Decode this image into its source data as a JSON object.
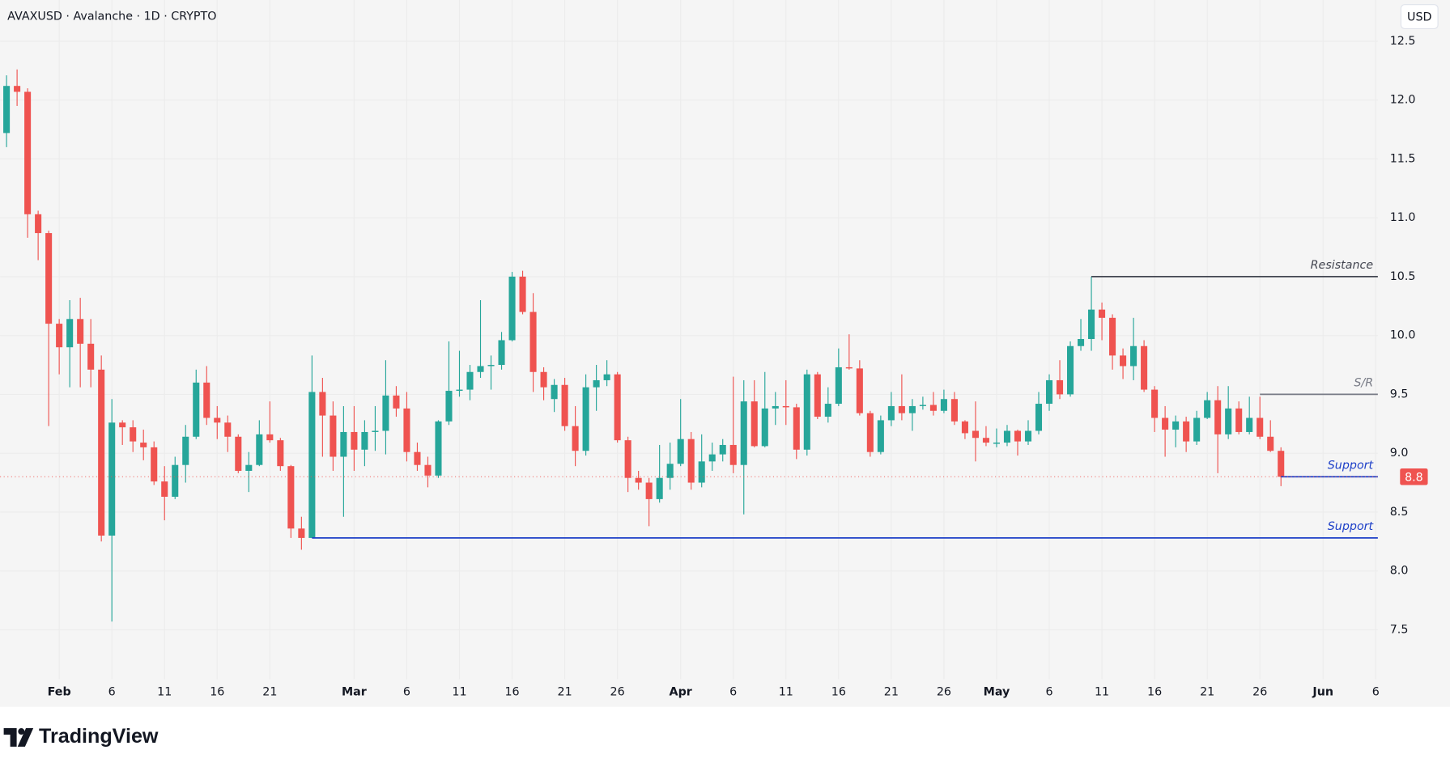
{
  "chart_data": {
    "type": "candlestick",
    "title": "AVAXUSD · Avalanche · 1D · CRYPTO",
    "currency": "USD",
    "logo_text": "TradingView",
    "up_color": "#26a69a",
    "down_color": "#ef5350",
    "x": [
      "Jan 27",
      "Jan 28",
      "Jan 29",
      "Jan 30",
      "Jan 31",
      "Feb 1",
      "Feb 2",
      "Feb 3",
      "Feb 4",
      "Feb 5",
      "Feb 6",
      "Feb 7",
      "Feb 8",
      "Feb 9",
      "Feb 10",
      "Feb 11",
      "Feb 12",
      "Feb 13",
      "Feb 14",
      "Feb 15",
      "Feb 16",
      "Feb 17",
      "Feb 18",
      "Feb 19",
      "Feb 20",
      "Feb 21",
      "Feb 22",
      "Feb 23",
      "Feb 24",
      "Feb 25",
      "Feb 26",
      "Feb 27",
      "Feb 28",
      "Mar 1",
      "Mar 2",
      "Mar 3",
      "Mar 4",
      "Mar 5",
      "Mar 6",
      "Mar 7",
      "Mar 8",
      "Mar 9",
      "Mar 10",
      "Mar 11",
      "Mar 12",
      "Mar 13",
      "Mar 14",
      "Mar 15",
      "Mar 16",
      "Mar 17",
      "Mar 18",
      "Mar 19",
      "Mar 20",
      "Mar 21",
      "Mar 22",
      "Mar 23",
      "Mar 24",
      "Mar 25",
      "Mar 26",
      "Mar 27",
      "Mar 28",
      "Mar 29",
      "Mar 30",
      "Mar 31",
      "Apr 1",
      "Apr 2",
      "Apr 3",
      "Apr 4",
      "Apr 5",
      "Apr 6",
      "Apr 7",
      "Apr 8",
      "Apr 9",
      "Apr 10",
      "Apr 11",
      "Apr 12",
      "Apr 13",
      "Apr 14",
      "Apr 15",
      "Apr 16",
      "Apr 17",
      "Apr 18",
      "Apr 19",
      "Apr 20",
      "Apr 21",
      "Apr 22",
      "Apr 23",
      "Apr 24",
      "Apr 25",
      "Apr 26",
      "Apr 27",
      "Apr 28",
      "Apr 29",
      "Apr 30",
      "May 1",
      "May 2",
      "May 3",
      "May 4",
      "May 5",
      "May 6",
      "May 7",
      "May 8",
      "May 9",
      "May 10",
      "May 11",
      "May 12",
      "May 13",
      "May 14",
      "May 15",
      "May 16",
      "May 17",
      "May 18",
      "May 19",
      "May 20",
      "May 21",
      "May 22",
      "May 23",
      "May 24",
      "May 25",
      "May 26",
      "May 27",
      "May 28"
    ],
    "open": [
      11.72,
      12.12,
      12.07,
      11.03,
      10.87,
      10.1,
      9.9,
      10.14,
      9.93,
      9.71,
      8.3,
      9.26,
      9.22,
      9.09,
      9.05,
      8.76,
      8.63,
      8.9,
      9.14,
      9.6,
      9.3,
      9.26,
      9.14,
      8.85,
      8.9,
      9.16,
      9.11,
      8.89,
      8.36,
      8.28,
      9.52,
      9.32,
      8.97,
      9.18,
      9.03,
      9.18,
      9.19,
      9.49,
      9.38,
      9.01,
      8.9,
      8.81,
      9.27,
      9.53,
      9.54,
      9.69,
      9.74,
      9.75,
      9.96,
      10.5,
      10.2,
      9.69,
      9.46,
      9.58,
      9.23,
      9.02,
      9.56,
      9.62,
      9.67,
      9.11,
      8.79,
      8.75,
      8.61,
      8.79,
      8.91,
      9.12,
      8.75,
      8.93,
      8.99,
      9.07,
      8.9,
      9.44,
      9.06,
      9.38,
      9.4,
      9.39,
      9.03,
      9.67,
      9.31,
      9.42,
      9.73,
      9.72,
      9.34,
      9.01,
      9.28,
      9.4,
      9.34,
      9.4,
      9.41,
      9.36,
      9.46,
      9.27,
      9.19,
      9.13,
      9.08,
      9.09,
      9.19,
      9.1,
      9.19,
      9.42,
      9.62,
      9.5,
      9.91,
      9.97,
      10.22,
      10.15,
      9.83,
      9.74,
      9.91,
      9.54,
      9.3,
      9.2,
      9.27,
      9.1,
      9.3,
      9.45,
      9.16,
      9.38,
      9.18,
      9.3,
      9.14,
      9.02
    ],
    "high": [
      12.21,
      12.26,
      12.1,
      11.06,
      10.89,
      10.14,
      10.3,
      10.32,
      10.14,
      9.83,
      9.46,
      9.28,
      9.28,
      9.2,
      9.1,
      8.89,
      8.97,
      9.24,
      9.71,
      9.74,
      9.4,
      9.32,
      9.16,
      9.01,
      9.28,
      9.44,
      9.13,
      8.9,
      8.46,
      9.83,
      9.64,
      9.44,
      9.4,
      9.4,
      9.28,
      9.4,
      9.79,
      9.57,
      9.52,
      9.09,
      8.97,
      9.28,
      9.95,
      9.87,
      9.75,
      10.3,
      9.83,
      10.03,
      10.54,
      10.55,
      10.36,
      9.73,
      9.63,
      9.64,
      9.4,
      9.67,
      9.75,
      9.79,
      9.69,
      9.14,
      8.85,
      8.79,
      9.07,
      9.09,
      9.46,
      9.18,
      9.16,
      9.09,
      9.12,
      9.65,
      9.62,
      9.62,
      9.69,
      9.52,
      9.62,
      9.42,
      9.71,
      9.69,
      9.56,
      9.89,
      10.01,
      9.79,
      9.36,
      9.32,
      9.52,
      9.67,
      9.46,
      9.48,
      9.52,
      9.54,
      9.52,
      9.28,
      9.44,
      9.23,
      9.21,
      9.24,
      9.2,
      9.28,
      9.52,
      9.67,
      9.79,
      9.95,
      10.14,
      10.5,
      10.28,
      10.18,
      9.89,
      10.15,
      9.96,
      9.57,
      9.4,
      9.32,
      9.31,
      9.36,
      9.52,
      9.57,
      9.57,
      9.44,
      9.48,
      9.48,
      9.28,
      9.05
    ],
    "low": [
      11.6,
      11.95,
      10.83,
      10.64,
      9.23,
      9.67,
      9.56,
      9.56,
      9.56,
      8.25,
      7.57,
      9.07,
      9.01,
      8.94,
      8.73,
      8.43,
      8.61,
      8.75,
      9.12,
      9.24,
      9.12,
      9.01,
      8.83,
      8.67,
      8.89,
      9.09,
      8.85,
      8.28,
      8.18,
      8.28,
      8.97,
      8.85,
      8.46,
      8.85,
      8.89,
      9.02,
      8.99,
      9.31,
      8.93,
      8.85,
      8.71,
      8.79,
      9.24,
      9.48,
      9.45,
      9.64,
      9.54,
      9.71,
      9.95,
      10.18,
      9.52,
      9.45,
      9.35,
      9.19,
      8.89,
      8.98,
      9.36,
      9.57,
      9.09,
      8.67,
      8.69,
      8.38,
      8.58,
      8.69,
      8.89,
      8.69,
      8.71,
      8.85,
      8.93,
      8.83,
      8.48,
      9.05,
      9.05,
      9.24,
      9.24,
      8.95,
      8.98,
      9.29,
      9.26,
      9.4,
      9.71,
      9.32,
      8.97,
      8.99,
      9.23,
      9.28,
      9.19,
      9.37,
      9.32,
      9.34,
      9.24,
      9.12,
      8.93,
      9.06,
      9.05,
      9.06,
      8.98,
      9.07,
      9.16,
      9.36,
      9.46,
      9.48,
      9.87,
      9.87,
      9.96,
      9.71,
      9.63,
      9.62,
      9.52,
      9.18,
      8.97,
      9.05,
      9.01,
      9.07,
      9.29,
      8.83,
      9.12,
      9.16,
      9.16,
      9.12,
      9.01,
      8.72
    ],
    "close": [
      12.12,
      12.07,
      11.03,
      10.87,
      10.1,
      9.9,
      10.14,
      9.93,
      9.71,
      8.3,
      9.26,
      9.22,
      9.1,
      9.05,
      8.76,
      8.63,
      8.9,
      9.14,
      9.6,
      9.3,
      9.26,
      9.14,
      8.85,
      8.9,
      9.16,
      9.11,
      8.89,
      8.36,
      8.28,
      9.52,
      9.32,
      8.97,
      9.18,
      9.03,
      9.18,
      9.19,
      9.49,
      9.38,
      9.01,
      8.9,
      8.81,
      9.27,
      9.53,
      9.54,
      9.69,
      9.74,
      9.75,
      9.96,
      10.5,
      10.2,
      9.69,
      9.56,
      9.58,
      9.23,
      9.02,
      9.56,
      9.62,
      9.67,
      9.11,
      8.79,
      8.75,
      8.61,
      8.79,
      8.91,
      9.12,
      8.75,
      8.93,
      8.99,
      9.07,
      8.9,
      9.44,
      9.06,
      9.38,
      9.4,
      9.39,
      9.03,
      9.67,
      9.31,
      9.42,
      9.73,
      9.72,
      9.34,
      9.01,
      9.28,
      9.4,
      9.34,
      9.4,
      9.41,
      9.36,
      9.46,
      9.27,
      9.17,
      9.13,
      9.09,
      9.09,
      9.19,
      9.1,
      9.19,
      9.42,
      9.62,
      9.5,
      9.91,
      9.97,
      10.22,
      10.15,
      9.83,
      9.74,
      9.91,
      9.54,
      9.3,
      9.2,
      9.27,
      9.1,
      9.3,
      9.45,
      9.16,
      9.38,
      9.18,
      9.3,
      9.14,
      9.02,
      8.8
    ],
    "last_price": 8.8,
    "levels": [
      {
        "label": "Resistance",
        "value": 10.5,
        "start": "May 10",
        "color": "#434651"
      },
      {
        "label": "S/R",
        "value": 9.5,
        "start": "May 26",
        "color": "#787b86"
      },
      {
        "label": "Support",
        "value": 8.8,
        "start": "May 28",
        "color": "#1e40c8"
      },
      {
        "label": "Support",
        "value": 8.28,
        "start": "Feb 25",
        "color": "#1e40c8"
      }
    ],
    "ylim": [
      7.08,
      12.85
    ],
    "yticks": [
      12.5,
      {
        "value": 12,
        "label": "12.0"
      },
      11.5,
      {
        "value": 11,
        "label": "11.0"
      },
      10.5,
      {
        "value": 10,
        "label": "10.0"
      },
      9.5,
      {
        "value": 9,
        "label": "9.0"
      },
      8.5,
      {
        "value": 8,
        "label": "8.0"
      },
      7.5
    ],
    "xticks": [
      {
        "value": "Feb 1",
        "label": "Feb"
      },
      {
        "value": "Feb 6",
        "label": "6"
      },
      {
        "value": "Feb 11",
        "label": "11"
      },
      {
        "value": "Feb 16",
        "label": "16"
      },
      {
        "value": "Feb 21",
        "label": "21"
      },
      {
        "value": "Mar 1",
        "label": "Mar"
      },
      {
        "value": "Mar 6",
        "label": "6"
      },
      {
        "value": "Mar 11",
        "label": "11"
      },
      {
        "value": "Mar 16",
        "label": "16"
      },
      {
        "value": "Mar 21",
        "label": "21"
      },
      {
        "value": "Mar 26",
        "label": "26"
      },
      {
        "value": "Apr 1",
        "label": "Apr"
      },
      {
        "value": "Apr 6",
        "label": "6"
      },
      {
        "value": "Apr 11",
        "label": "11"
      },
      {
        "value": "Apr 16",
        "label": "16"
      },
      {
        "value": "Apr 21",
        "label": "21"
      },
      {
        "value": "Apr 26",
        "label": "26"
      },
      {
        "value": "May 1",
        "label": "May"
      },
      {
        "value": "May 6",
        "label": "6"
      },
      {
        "value": "May 11",
        "label": "11"
      },
      {
        "value": "May 16",
        "label": "16"
      },
      {
        "value": "May 21",
        "label": "21"
      },
      {
        "value": "May 26",
        "label": "26"
      },
      {
        "value": "Jun 1",
        "label": "Jun"
      },
      {
        "value": "Jun 6",
        "label": "6"
      }
    ],
    "grid": true
  }
}
